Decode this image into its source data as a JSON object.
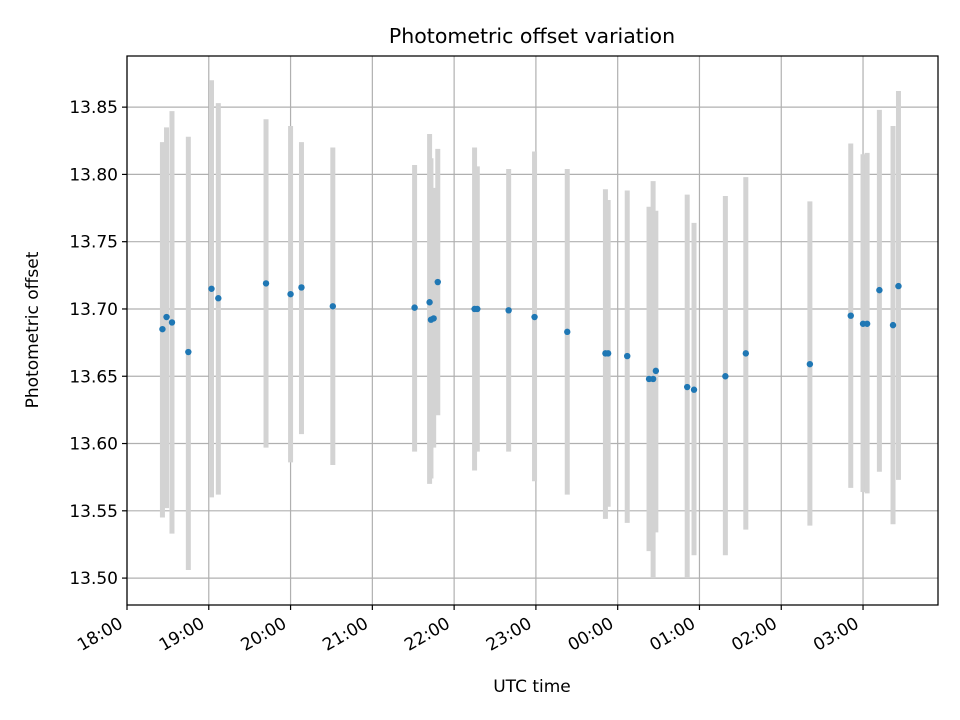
{
  "chart_data": {
    "type": "scatter",
    "title": "Photometric offset variation",
    "xlabel": "UTC time",
    "ylabel": "Photometric offset",
    "grid": true,
    "x_ticks": [
      "18:00",
      "19:00",
      "20:00",
      "21:00",
      "22:00",
      "23:00",
      "00:00",
      "01:00",
      "02:00",
      "03:00"
    ],
    "y_ticks": [
      "13.50",
      "13.55",
      "13.60",
      "13.65",
      "13.70",
      "13.75",
      "13.80",
      "13.85"
    ],
    "xlim": [
      "18:00",
      "03:55"
    ],
    "ylim": [
      13.48,
      13.888
    ],
    "point_color": "#1f77b4",
    "errorbar_color": "#d3d3d3",
    "series": [
      {
        "points": [
          {
            "t": "18:26",
            "y": 13.685,
            "lo": 13.545,
            "hi": 13.824
          },
          {
            "t": "18:29",
            "y": 13.694,
            "lo": 13.552,
            "hi": 13.835
          },
          {
            "t": "18:33",
            "y": 13.69,
            "lo": 13.533,
            "hi": 13.847
          },
          {
            "t": "18:45",
            "y": 13.668,
            "lo": 13.506,
            "hi": 13.828
          },
          {
            "t": "19:02",
            "y": 13.715,
            "lo": 13.56,
            "hi": 13.87
          },
          {
            "t": "19:07",
            "y": 13.708,
            "lo": 13.562,
            "hi": 13.853
          },
          {
            "t": "19:42",
            "y": 13.719,
            "lo": 13.597,
            "hi": 13.841
          },
          {
            "t": "20:00",
            "y": 13.711,
            "lo": 13.586,
            "hi": 13.836
          },
          {
            "t": "20:08",
            "y": 13.716,
            "lo": 13.607,
            "hi": 13.824
          },
          {
            "t": "20:31",
            "y": 13.702,
            "lo": 13.584,
            "hi": 13.82
          },
          {
            "t": "21:31",
            "y": 13.701,
            "lo": 13.594,
            "hi": 13.807
          },
          {
            "t": "21:42",
            "y": 13.705,
            "lo": 13.57,
            "hi": 13.83
          },
          {
            "t": "21:43",
            "y": 13.692,
            "lo": 13.574,
            "hi": 13.812
          },
          {
            "t": "21:45",
            "y": 13.693,
            "lo": 13.597,
            "hi": 13.79
          },
          {
            "t": "21:48",
            "y": 13.72,
            "lo": 13.621,
            "hi": 13.819
          },
          {
            "t": "22:15",
            "y": 13.7,
            "lo": 13.58,
            "hi": 13.82
          },
          {
            "t": "22:17",
            "y": 13.7,
            "lo": 13.594,
            "hi": 13.806
          },
          {
            "t": "22:40",
            "y": 13.699,
            "lo": 13.594,
            "hi": 13.804
          },
          {
            "t": "22:59",
            "y": 13.694,
            "lo": 13.572,
            "hi": 13.817
          },
          {
            "t": "23:23",
            "y": 13.683,
            "lo": 13.562,
            "hi": 13.804
          },
          {
            "t": "23:51",
            "y": 13.667,
            "lo": 13.544,
            "hi": 13.789
          },
          {
            "t": "23:53",
            "y": 13.667,
            "lo": 13.553,
            "hi": 13.781
          },
          {
            "t": "00:07",
            "y": 13.665,
            "lo": 13.541,
            "hi": 13.788
          },
          {
            "t": "00:23",
            "y": 13.648,
            "lo": 13.52,
            "hi": 13.776
          },
          {
            "t": "00:26",
            "y": 13.648,
            "lo": 13.5,
            "hi": 13.795
          },
          {
            "t": "00:28",
            "y": 13.654,
            "lo": 13.534,
            "hi": 13.773
          },
          {
            "t": "00:51",
            "y": 13.642,
            "lo": 13.5,
            "hi": 13.785
          },
          {
            "t": "00:56",
            "y": 13.64,
            "lo": 13.517,
            "hi": 13.764
          },
          {
            "t": "01:19",
            "y": 13.65,
            "lo": 13.517,
            "hi": 13.784
          },
          {
            "t": "01:34",
            "y": 13.667,
            "lo": 13.536,
            "hi": 13.798
          },
          {
            "t": "02:21",
            "y": 13.659,
            "lo": 13.539,
            "hi": 13.78
          },
          {
            "t": "02:51",
            "y": 13.695,
            "lo": 13.567,
            "hi": 13.823
          },
          {
            "t": "03:00",
            "y": 13.689,
            "lo": 13.564,
            "hi": 13.815
          },
          {
            "t": "03:03",
            "y": 13.689,
            "lo": 13.563,
            "hi": 13.816
          },
          {
            "t": "03:12",
            "y": 13.714,
            "lo": 13.579,
            "hi": 13.848
          },
          {
            "t": "03:22",
            "y": 13.688,
            "lo": 13.54,
            "hi": 13.836
          },
          {
            "t": "03:26",
            "y": 13.717,
            "lo": 13.573,
            "hi": 13.862
          }
        ]
      }
    ]
  }
}
